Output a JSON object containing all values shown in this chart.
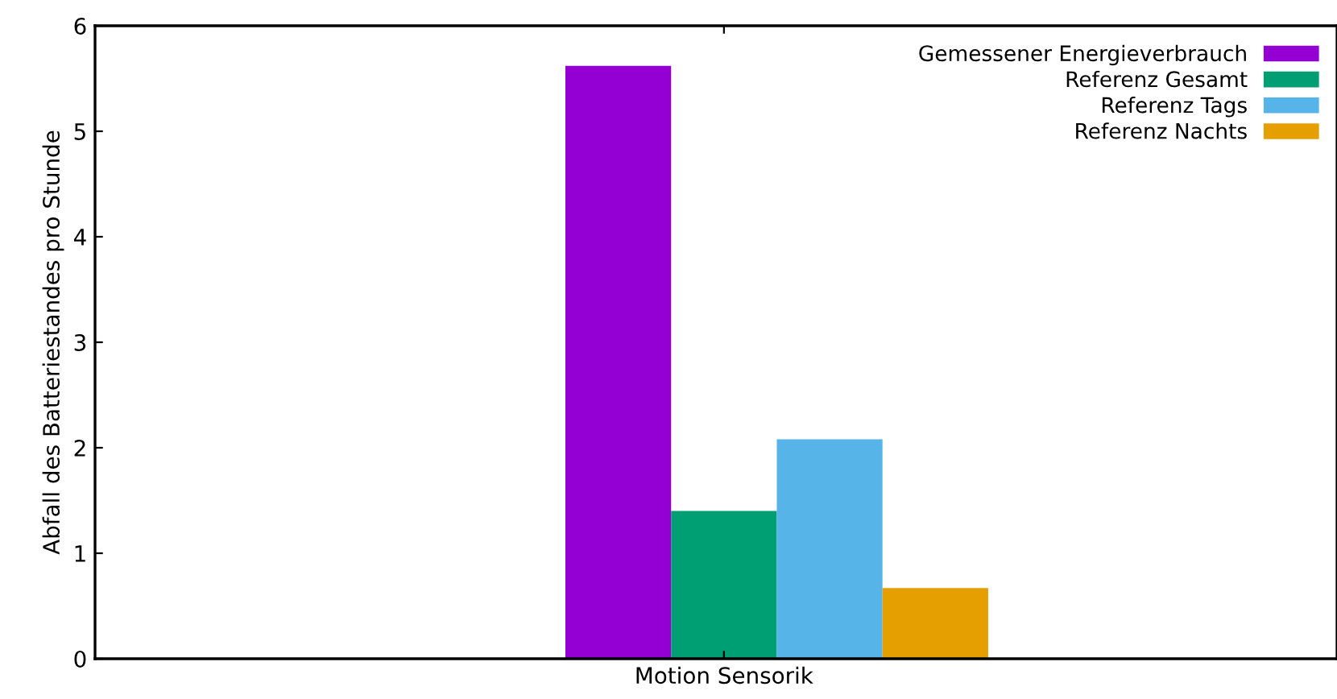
{
  "chart_data": {
    "type": "bar",
    "ylabel": "Abfall des Batteriestandes pro Stunde",
    "categories": [
      "Motion Sensorik"
    ],
    "series": [
      {
        "name": "Gemessener Energieverbrauch",
        "color": "#9400d3",
        "values": [
          5.62
        ]
      },
      {
        "name": "Referenz Gesamt",
        "color": "#009e73",
        "values": [
          1.4
        ]
      },
      {
        "name": "Referenz Tags",
        "color": "#56b4e9",
        "values": [
          2.08
        ]
      },
      {
        "name": "Referenz Nachts",
        "color": "#e69f00",
        "values": [
          0.67
        ]
      }
    ],
    "ylim": [
      0,
      6
    ],
    "yticks": [
      0,
      1,
      2,
      3,
      4,
      5,
      6
    ],
    "grid": false,
    "legend": "top right"
  }
}
